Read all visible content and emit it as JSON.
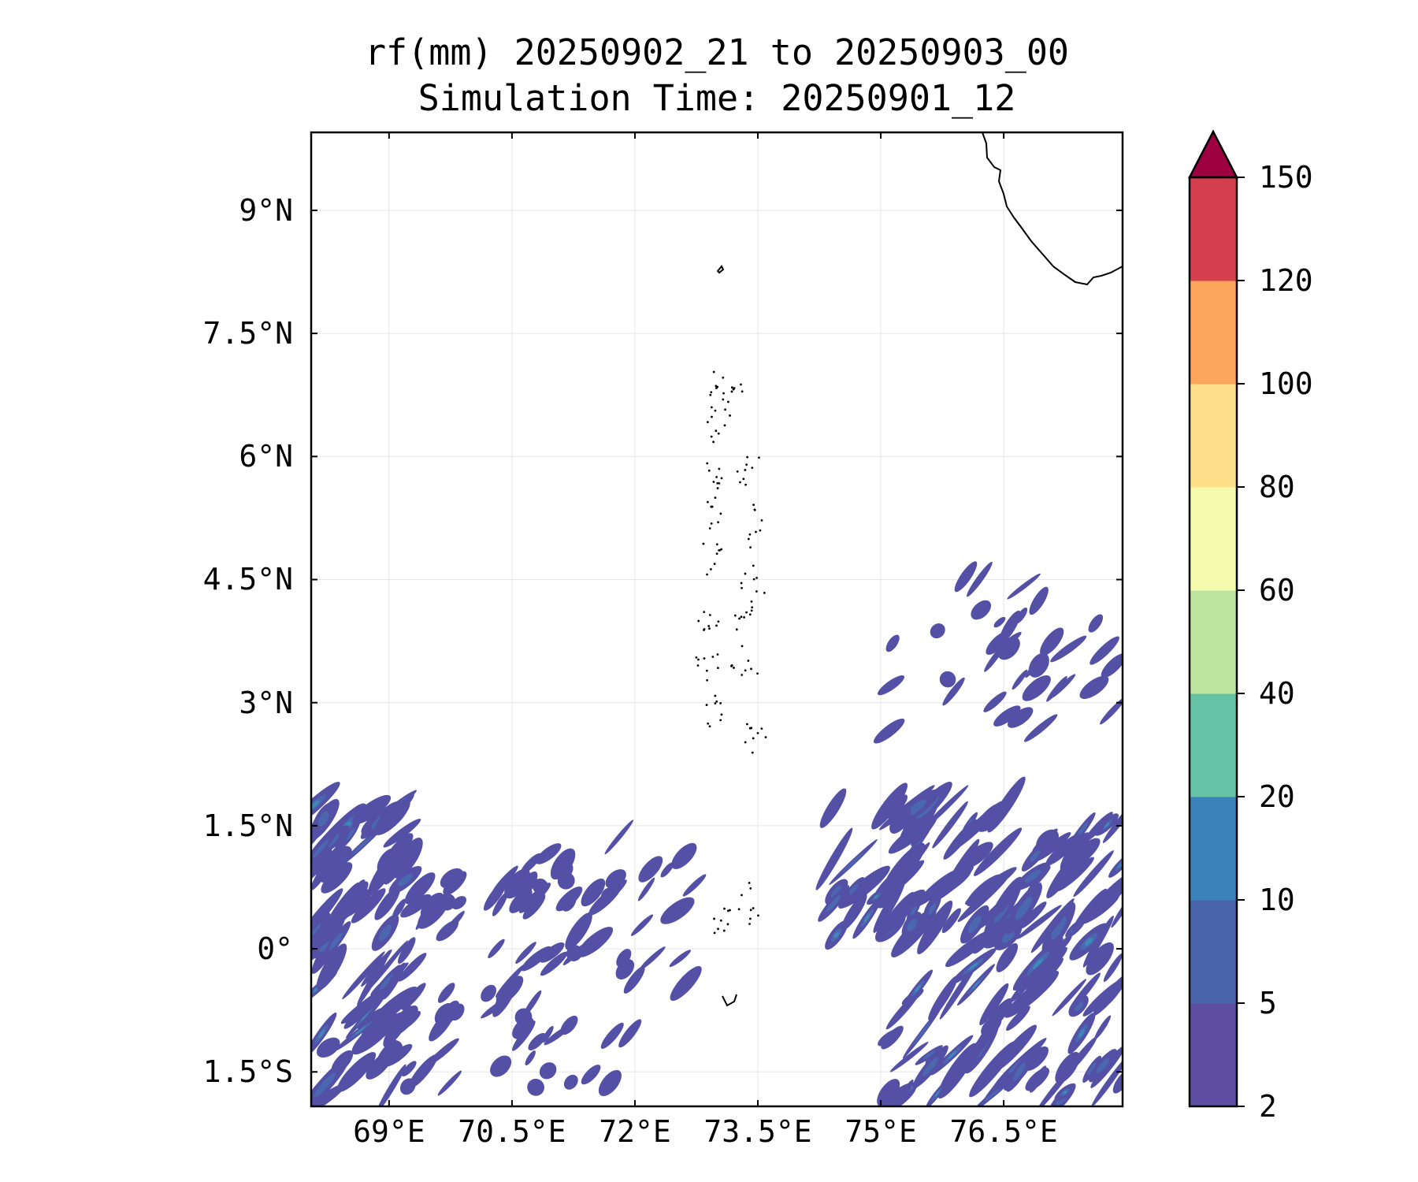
{
  "title": {
    "line1": "rf(mm) 20250902_21 to 20250903_00",
    "line2": "Simulation Time: 20250901_12"
  },
  "axes": {
    "lat_ticks": [
      "9°N",
      "7.5°N",
      "6°N",
      "4.5°N",
      "3°N",
      "1.5°N",
      "0°",
      "1.5°S"
    ],
    "lon_ticks": [
      "69°E",
      "70.5°E",
      "72°E",
      "73.5°E",
      "75°E",
      "76.5°E"
    ],
    "lat_values": [
      9,
      7.5,
      6,
      4.5,
      3,
      1.5,
      0,
      -1.5
    ],
    "lon_values": [
      69,
      70.5,
      72,
      73.5,
      75,
      76.5
    ],
    "lon_range": [
      68.05,
      77.95
    ],
    "lat_range": [
      -1.92,
      9.95
    ],
    "grid": true
  },
  "colorbar": {
    "levels": [
      "2",
      "5",
      "10",
      "20",
      "40",
      "60",
      "80",
      "100",
      "120",
      "150"
    ],
    "colors": [
      "#5e4fa2",
      "#4b65ad",
      "#3a82b9",
      "#66c2a5",
      "#bee5a0",
      "#f4fbae",
      "#fee08b",
      "#fca55d",
      "#d53e4f"
    ],
    "extend_color": "#9e0142",
    "extend": "max"
  },
  "rain_colors": {
    "light": "#5350a6",
    "moderate": "#4a67b0",
    "heavy": "#3d8ab8"
  }
}
